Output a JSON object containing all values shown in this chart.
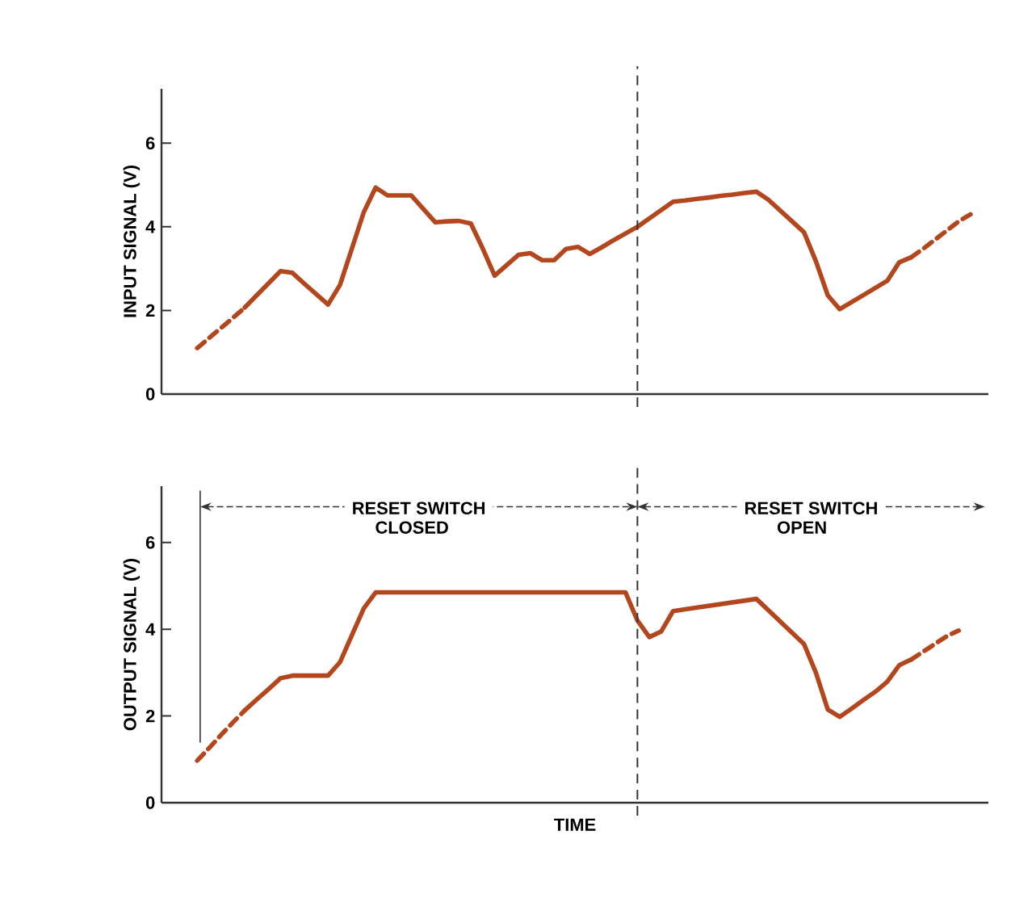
{
  "chart_data": [
    {
      "type": "line",
      "ylabel": "INPUT SIGNAL (V)",
      "tick_labels": "y",
      "ylim": [
        0,
        7.3
      ],
      "yticks": [
        0,
        2,
        4,
        6
      ],
      "categories": [
        null,
        null,
        null,
        null,
        null,
        null,
        null,
        null,
        null,
        null,
        null,
        null,
        null,
        null,
        null,
        null,
        null,
        null,
        null,
        null,
        null,
        null,
        null,
        null,
        null,
        null,
        null,
        null,
        null,
        null,
        null,
        null,
        null,
        null,
        null,
        null,
        null,
        null,
        null,
        null,
        null,
        null,
        null,
        null,
        null,
        null,
        null,
        null,
        null,
        null,
        null,
        null,
        null,
        null,
        null,
        null,
        null,
        null,
        null,
        null,
        null,
        null,
        null,
        null,
        null,
        null
      ],
      "series": [
        {
          "color": "#b4461e",
          "line_style": "dashed",
          "values": [
            1.1,
            1.34,
            1.58,
            1.82,
            2.07,
            null,
            null,
            null,
            null,
            null,
            null,
            null,
            null,
            null,
            null,
            null,
            null,
            null,
            null,
            null,
            null,
            null,
            null,
            null,
            null,
            null,
            null,
            null,
            null,
            null,
            null,
            null,
            null,
            null,
            null,
            null,
            null,
            null,
            null,
            null,
            null,
            null,
            null,
            null,
            null,
            null,
            null,
            null,
            null,
            null,
            null,
            null,
            null,
            null,
            null,
            null,
            null,
            null,
            null,
            null,
            null,
            null,
            null,
            null,
            null,
            null
          ]
        },
        {
          "color": "#b4461e",
          "line_style": "solid",
          "values": [
            null,
            null,
            null,
            null,
            2.07,
            2.36,
            2.65,
            2.94,
            2.9,
            2.64,
            2.39,
            2.14,
            2.61,
            3.48,
            4.35,
            4.94,
            4.75,
            4.75,
            4.75,
            4.43,
            4.11,
            4.13,
            4.14,
            4.08,
            3.48,
            2.83,
            3.08,
            3.33,
            3.37,
            3.2,
            3.2,
            3.47,
            3.52,
            3.35,
            3.51,
            3.68,
            3.84,
            4.0,
            4.2,
            4.4,
            4.6,
            4.63,
            4.67,
            4.7,
            4.74,
            4.77,
            4.81,
            4.84,
            4.65,
            4.39,
            4.13,
            3.87,
            3.18,
            2.36,
            2.03,
            2.2,
            2.37,
            2.54,
            2.71,
            3.15,
            3.27,
            null,
            null,
            null,
            null,
            null
          ]
        },
        {
          "color": "#b4461e",
          "line_style": "dashed",
          "values": [
            null,
            null,
            null,
            null,
            null,
            null,
            null,
            null,
            null,
            null,
            null,
            null,
            null,
            null,
            null,
            null,
            null,
            null,
            null,
            null,
            null,
            null,
            null,
            null,
            null,
            null,
            null,
            null,
            null,
            null,
            null,
            null,
            null,
            null,
            null,
            null,
            null,
            null,
            null,
            null,
            null,
            null,
            null,
            null,
            null,
            null,
            null,
            null,
            null,
            null,
            null,
            null,
            null,
            null,
            null,
            null,
            null,
            null,
            null,
            null,
            3.27,
            3.47,
            3.69,
            3.91,
            4.13,
            4.3
          ]
        }
      ]
    },
    {
      "type": "line",
      "ylabel": "OUTPUT SIGNAL (V)",
      "xlabel": "TIME",
      "tick_labels": "y",
      "ylim": [
        0,
        7.3
      ],
      "yticks": [
        0,
        2,
        4,
        6
      ],
      "categories": [
        null,
        null,
        null,
        null,
        null,
        null,
        null,
        null,
        null,
        null,
        null,
        null,
        null,
        null,
        null,
        null,
        null,
        null,
        null,
        null,
        null,
        null,
        null,
        null,
        null,
        null,
        null,
        null,
        null,
        null,
        null,
        null,
        null,
        null,
        null,
        null,
        null,
        null,
        null,
        null,
        null,
        null,
        null,
        null,
        null,
        null,
        null,
        null,
        null,
        null,
        null,
        null,
        null,
        null,
        null,
        null,
        null,
        null,
        null,
        null,
        null,
        null,
        null,
        null,
        null,
        null
      ],
      "series": [
        {
          "color": "#b4461e",
          "line_style": "dashed",
          "values": [
            0.97,
            1.26,
            1.56,
            1.85,
            2.13,
            null,
            null,
            null,
            null,
            null,
            null,
            null,
            null,
            null,
            null,
            null,
            null,
            null,
            null,
            null,
            null,
            null,
            null,
            null,
            null,
            null,
            null,
            null,
            null,
            null,
            null,
            null,
            null,
            null,
            null,
            null,
            null,
            null,
            null,
            null,
            null,
            null,
            null,
            null,
            null,
            null,
            null,
            null,
            null,
            null,
            null,
            null,
            null,
            null,
            null,
            null,
            null,
            null,
            null,
            null,
            null,
            null,
            null,
            null,
            null,
            null
          ]
        },
        {
          "color": "#b4461e",
          "line_style": "solid",
          "values": [
            null,
            null,
            null,
            null,
            2.13,
            2.38,
            2.62,
            2.87,
            2.93,
            2.93,
            2.93,
            2.93,
            3.24,
            3.86,
            4.48,
            4.85,
            4.85,
            4.85,
            4.85,
            4.85,
            4.85,
            4.85,
            4.85,
            4.85,
            4.85,
            4.85,
            4.85,
            4.85,
            4.85,
            4.85,
            4.85,
            4.85,
            4.85,
            4.85,
            4.85,
            4.85,
            4.85,
            4.2,
            3.82,
            3.95,
            4.42,
            4.46,
            4.5,
            4.54,
            4.58,
            4.62,
            4.66,
            4.7,
            4.44,
            4.18,
            3.92,
            3.66,
            3.0,
            2.15,
            1.98,
            2.17,
            2.37,
            2.56,
            2.79,
            3.17,
            3.3,
            null,
            null,
            null,
            null,
            null
          ]
        },
        {
          "color": "#b4461e",
          "line_style": "dashed",
          "values": [
            null,
            null,
            null,
            null,
            null,
            null,
            null,
            null,
            null,
            null,
            null,
            null,
            null,
            null,
            null,
            null,
            null,
            null,
            null,
            null,
            null,
            null,
            null,
            null,
            null,
            null,
            null,
            null,
            null,
            null,
            null,
            null,
            null,
            null,
            null,
            null,
            null,
            null,
            null,
            null,
            null,
            null,
            null,
            null,
            null,
            null,
            null,
            null,
            null,
            null,
            null,
            null,
            null,
            null,
            null,
            null,
            null,
            null,
            null,
            null,
            3.3,
            3.48,
            3.66,
            3.84,
            3.97,
            null
          ]
        }
      ],
      "annotations": [
        "RESET SWITCH CLOSED",
        "RESET SWITCH OPEN"
      ]
    }
  ]
}
